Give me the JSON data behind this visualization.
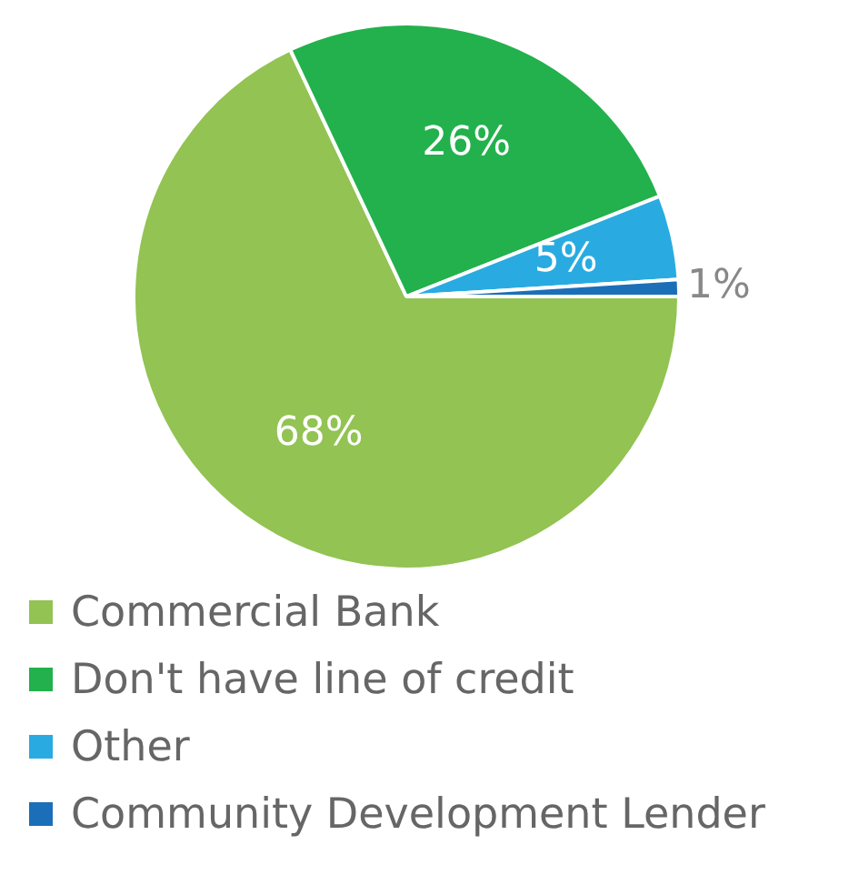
{
  "chart_data": {
    "type": "pie",
    "categories": [
      "Commercial Bank",
      "Don't have line of credit",
      "Other",
      "Community Development Lender"
    ],
    "values": [
      68,
      26,
      5,
      1
    ],
    "colors": [
      "#92c353",
      "#22b14c",
      "#29abe2",
      "#1b6fb8"
    ],
    "value_labels": [
      "68%",
      "26%",
      "5%",
      "1%"
    ],
    "legend": "bottom left"
  }
}
